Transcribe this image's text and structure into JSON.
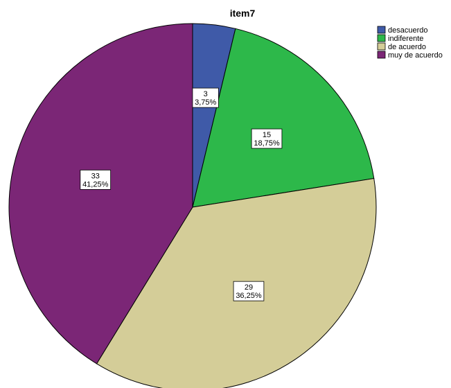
{
  "chart_data": {
    "type": "pie",
    "title": "item7",
    "categories": [
      "desacuerdo",
      "indiferente",
      "de acuerdo",
      "muy de acuerdo"
    ],
    "values": [
      3,
      15,
      29,
      33
    ],
    "percent_labels": [
      "3,75%",
      "18,75%",
      "36,25%",
      "41,25%"
    ],
    "colors": [
      "#3f5aa8",
      "#2db84a",
      "#d4cd98",
      "#7b2676"
    ],
    "legend_position": "top-right",
    "start_angle_deg": 0,
    "direction": "clockwise"
  }
}
